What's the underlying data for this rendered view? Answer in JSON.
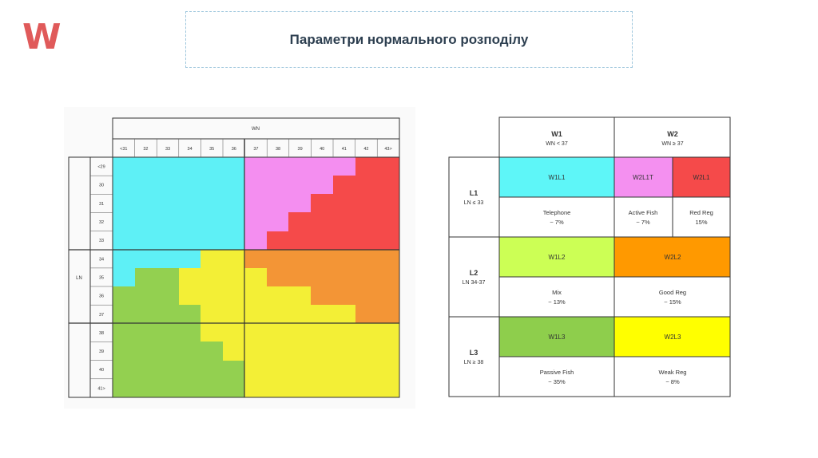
{
  "header": {
    "logo": "W",
    "title": "Параметри нормального розподілу"
  },
  "grid": {
    "wn_label": "WN",
    "ln_label": "LN",
    "wn_ticks": [
      "<31",
      "32",
      "33",
      "34",
      "35",
      "36",
      "37",
      "38",
      "39",
      "40",
      "41",
      "42",
      "43>"
    ],
    "ln_ticks": [
      "<29",
      "30",
      "31",
      "32",
      "33",
      "34",
      "35",
      "36",
      "37",
      "38",
      "39",
      "40",
      "41>"
    ],
    "colors": {
      "cyan": "#5ef0f6",
      "pink": "#f48ef0",
      "red": "#f54a4a",
      "orange": "#f39536",
      "yellow": "#f3ef36",
      "green": "#93d050"
    }
  },
  "legend": {
    "w1_title": "W1",
    "w1_sub": "WN < 37",
    "w2_title": "W2",
    "w2_sub": "WN ≥ 37",
    "l1_title": "L1",
    "l1_sub": "LN ≤ 33",
    "l2_title": "L2",
    "l2_sub": "LN 34-37",
    "l3_title": "L3",
    "l3_sub": "LN ≥ 38",
    "w1l1": "W1L1",
    "w2l1t": "W2L1T",
    "w2l1": "W2L1",
    "w1l2": "W1L2",
    "w2l2": "W2L2",
    "w1l3": "W1L3",
    "w2l3": "W2L3",
    "telephone": "Telephone",
    "telephone_pct": "~ 7%",
    "active_fish": "Active Fish",
    "active_fish_pct": "~ 7%",
    "red_reg": "Red Reg",
    "red_reg_pct": "15%",
    "mix": "Mix",
    "mix_pct": "~ 13%",
    "good_reg": "Good Reg",
    "good_reg_pct": "~ 15%",
    "passive_fish": "Passive Fish",
    "passive_fish_pct": "~ 35%",
    "weak_reg": "Weak Reg",
    "weak_reg_pct": "~ 8%",
    "colors": {
      "cyan": "#5ef6f8",
      "pink": "#f490f0",
      "red": "#f54a4a",
      "lime": "#ccff55",
      "orange": "#ff9900",
      "green": "#8ece4c",
      "yellow": "#ffff00"
    }
  }
}
